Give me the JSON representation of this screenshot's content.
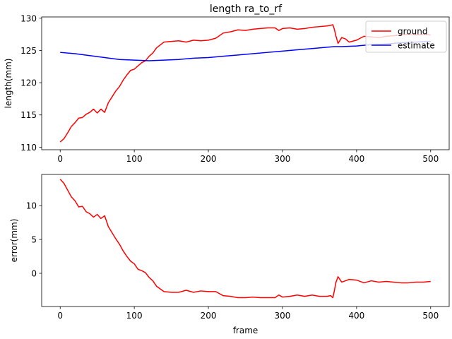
{
  "chart_data": [
    {
      "type": "line",
      "title": "length ra_to_rf",
      "xlabel": "",
      "ylabel": "length(mm)",
      "xlim": [
        -25,
        525
      ],
      "ylim": [
        109.6,
        130.2
      ],
      "xticks": [
        0,
        100,
        200,
        300,
        400,
        500
      ],
      "yticks": [
        110,
        115,
        120,
        125,
        130
      ],
      "xtick_labels": [
        "0",
        "100",
        "200",
        "300",
        "400",
        "500"
      ],
      "ytick_labels": [
        "110",
        "115",
        "120",
        "125",
        "130"
      ],
      "legend_position": "upper right",
      "grid": false,
      "series": [
        {
          "name": "ground",
          "color": "#ff0000",
          "x": [
            0,
            5,
            10,
            15,
            20,
            25,
            30,
            35,
            40,
            45,
            50,
            55,
            60,
            65,
            70,
            75,
            80,
            85,
            90,
            95,
            100,
            105,
            110,
            115,
            120,
            125,
            130,
            140,
            150,
            160,
            170,
            180,
            190,
            200,
            210,
            220,
            230,
            240,
            250,
            260,
            270,
            280,
            290,
            295,
            300,
            310,
            320,
            330,
            340,
            350,
            360,
            365,
            368,
            370,
            372,
            375,
            380,
            385,
            390,
            400,
            410,
            420,
            430,
            440,
            450,
            460,
            470,
            480,
            490,
            500
          ],
          "y": [
            110.8,
            111.3,
            112.2,
            113.2,
            113.8,
            114.5,
            114.6,
            115.1,
            115.4,
            115.9,
            115.3,
            115.9,
            115.4,
            116.9,
            117.8,
            118.7,
            119.4,
            120.4,
            121.2,
            121.9,
            122.1,
            122.6,
            123.1,
            123.4,
            124.1,
            124.6,
            125.4,
            126.3,
            126.4,
            126.5,
            126.3,
            126.6,
            126.5,
            126.6,
            126.9,
            127.7,
            127.9,
            128.2,
            128.1,
            128.3,
            128.4,
            128.5,
            128.5,
            128.1,
            128.4,
            128.5,
            128.3,
            128.4,
            128.6,
            128.7,
            128.8,
            128.9,
            129.0,
            128.3,
            127.3,
            126.1,
            127.0,
            126.8,
            126.3,
            126.6,
            127.2,
            127.1,
            127.0,
            127.2,
            127.3,
            127.4,
            127.5,
            127.4,
            127.5,
            127.4
          ]
        },
        {
          "name": "estimate",
          "color": "#0000ff",
          "x": [
            0,
            20,
            40,
            60,
            80,
            100,
            120,
            140,
            160,
            180,
            200,
            220,
            240,
            260,
            280,
            300,
            320,
            340,
            360,
            370,
            380,
            400,
            420,
            440,
            460,
            480,
            500
          ],
          "y": [
            124.7,
            124.5,
            124.2,
            123.9,
            123.6,
            123.5,
            123.4,
            123.5,
            123.6,
            123.8,
            123.9,
            124.1,
            124.3,
            124.5,
            124.7,
            124.9,
            125.1,
            125.3,
            125.5,
            125.6,
            125.6,
            125.7,
            125.9,
            126.0,
            126.2,
            126.3,
            126.4
          ]
        }
      ]
    },
    {
      "type": "line",
      "title": "",
      "xlabel": "frame",
      "ylabel": "error(mm)",
      "xlim": [
        -25,
        525
      ],
      "ylim": [
        -4.9,
        14.6
      ],
      "xticks": [
        0,
        100,
        200,
        300,
        400,
        500
      ],
      "yticks": [
        0,
        5,
        10
      ],
      "xtick_labels": [
        "0",
        "100",
        "200",
        "300",
        "400",
        "500"
      ],
      "ytick_labels": [
        "0",
        "5",
        "10"
      ],
      "grid": false,
      "series": [
        {
          "color": "#ff0000",
          "x": [
            0,
            5,
            10,
            15,
            20,
            25,
            30,
            35,
            40,
            45,
            50,
            55,
            60,
            65,
            70,
            75,
            80,
            85,
            90,
            95,
            100,
            105,
            110,
            115,
            120,
            125,
            130,
            140,
            150,
            160,
            170,
            180,
            190,
            200,
            210,
            220,
            230,
            240,
            250,
            260,
            270,
            280,
            290,
            295,
            300,
            310,
            320,
            330,
            340,
            350,
            360,
            365,
            368,
            370,
            372,
            375,
            380,
            385,
            390,
            400,
            410,
            420,
            430,
            440,
            450,
            460,
            470,
            480,
            490,
            500
          ],
          "y": [
            13.9,
            13.3,
            12.3,
            11.3,
            10.7,
            9.8,
            9.9,
            9.1,
            8.8,
            8.3,
            8.7,
            8.1,
            8.5,
            6.9,
            6.0,
            5.1,
            4.3,
            3.3,
            2.5,
            1.8,
            1.4,
            0.6,
            0.4,
            0.1,
            -0.6,
            -1.1,
            -1.9,
            -2.7,
            -2.8,
            -2.8,
            -2.5,
            -2.8,
            -2.6,
            -2.7,
            -2.7,
            -3.3,
            -3.4,
            -3.6,
            -3.6,
            -3.5,
            -3.6,
            -3.6,
            -3.6,
            -3.2,
            -3.5,
            -3.4,
            -3.2,
            -3.4,
            -3.2,
            -3.4,
            -3.4,
            -3.3,
            -3.6,
            -2.6,
            -1.4,
            -0.5,
            -1.3,
            -1.1,
            -0.9,
            -1.0,
            -1.4,
            -1.1,
            -1.3,
            -1.2,
            -1.3,
            -1.4,
            -1.4,
            -1.3,
            -1.3,
            -1.2
          ]
        }
      ]
    }
  ]
}
